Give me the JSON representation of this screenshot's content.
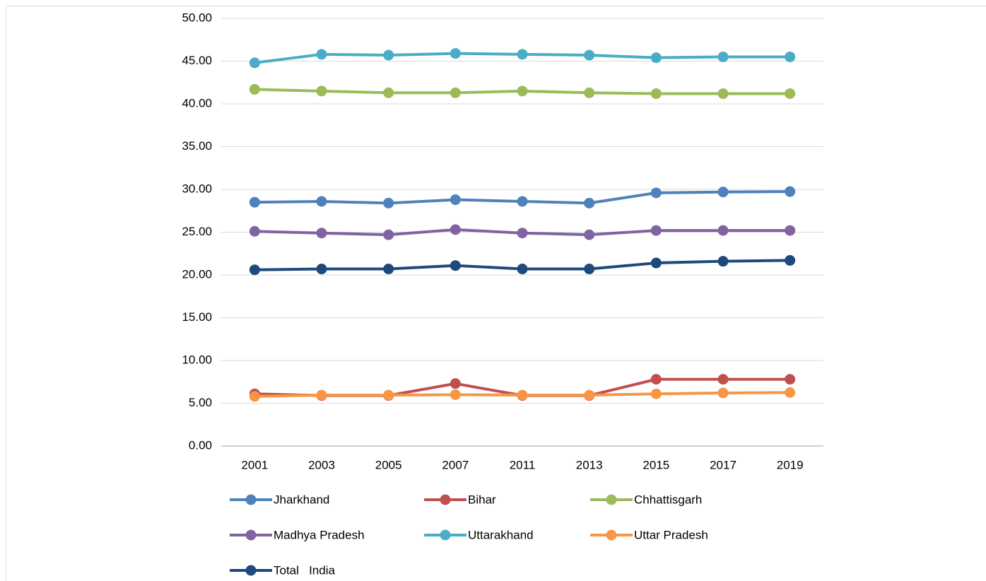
{
  "chart_data": {
    "type": "line",
    "categories": [
      "2001",
      "2003",
      "2005",
      "2007",
      "2011",
      "2013",
      "2015",
      "2017",
      "2019"
    ],
    "series": [
      {
        "name": "Jharkhand",
        "color": "#4f81bd",
        "values": [
          28.5,
          28.6,
          28.4,
          28.8,
          28.6,
          28.4,
          29.6,
          29.7,
          29.75
        ]
      },
      {
        "name": "Bihar",
        "color": "#c0504d",
        "values": [
          6.1,
          5.9,
          5.9,
          7.3,
          5.9,
          5.9,
          7.8,
          7.8,
          7.8
        ]
      },
      {
        "name": "Chhattisgarh",
        "color": "#9bbb59",
        "values": [
          41.7,
          41.5,
          41.3,
          41.3,
          41.5,
          41.3,
          41.2,
          41.2,
          41.2
        ]
      },
      {
        "name": "Madhya Pradesh",
        "color": "#8064a2",
        "values": [
          25.1,
          24.9,
          24.7,
          25.3,
          24.9,
          24.7,
          25.2,
          25.2,
          25.2
        ]
      },
      {
        "name": "Uttarakhand",
        "color": "#4bacc6",
        "values": [
          44.8,
          45.8,
          45.7,
          45.9,
          45.8,
          45.7,
          45.4,
          45.5,
          45.5
        ]
      },
      {
        "name": "Uttar Pradesh",
        "color": "#f79646",
        "values": [
          5.8,
          5.95,
          5.95,
          6.0,
          5.95,
          5.95,
          6.1,
          6.2,
          6.25
        ]
      },
      {
        "name": "Total   India",
        "color": "#1f497d",
        "values": [
          20.6,
          20.7,
          20.7,
          21.1,
          20.7,
          20.7,
          21.4,
          21.6,
          21.7
        ]
      }
    ],
    "ylim": [
      0,
      50
    ],
    "yticks": [
      {
        "value": 0,
        "label": "0.00"
      },
      {
        "value": 5,
        "label": "5.00"
      },
      {
        "value": 10,
        "label": "10.00"
      },
      {
        "value": 15,
        "label": "15.00"
      },
      {
        "value": 20,
        "label": "20.00"
      },
      {
        "value": 25,
        "label": "25.00"
      },
      {
        "value": 30,
        "label": "30.00"
      },
      {
        "value": 35,
        "label": "35.00"
      },
      {
        "value": 40,
        "label": "40.00"
      },
      {
        "value": 45,
        "label": "45.00"
      },
      {
        "value": 50,
        "label": "50.00"
      }
    ],
    "grid": true,
    "legend": "bottom"
  }
}
